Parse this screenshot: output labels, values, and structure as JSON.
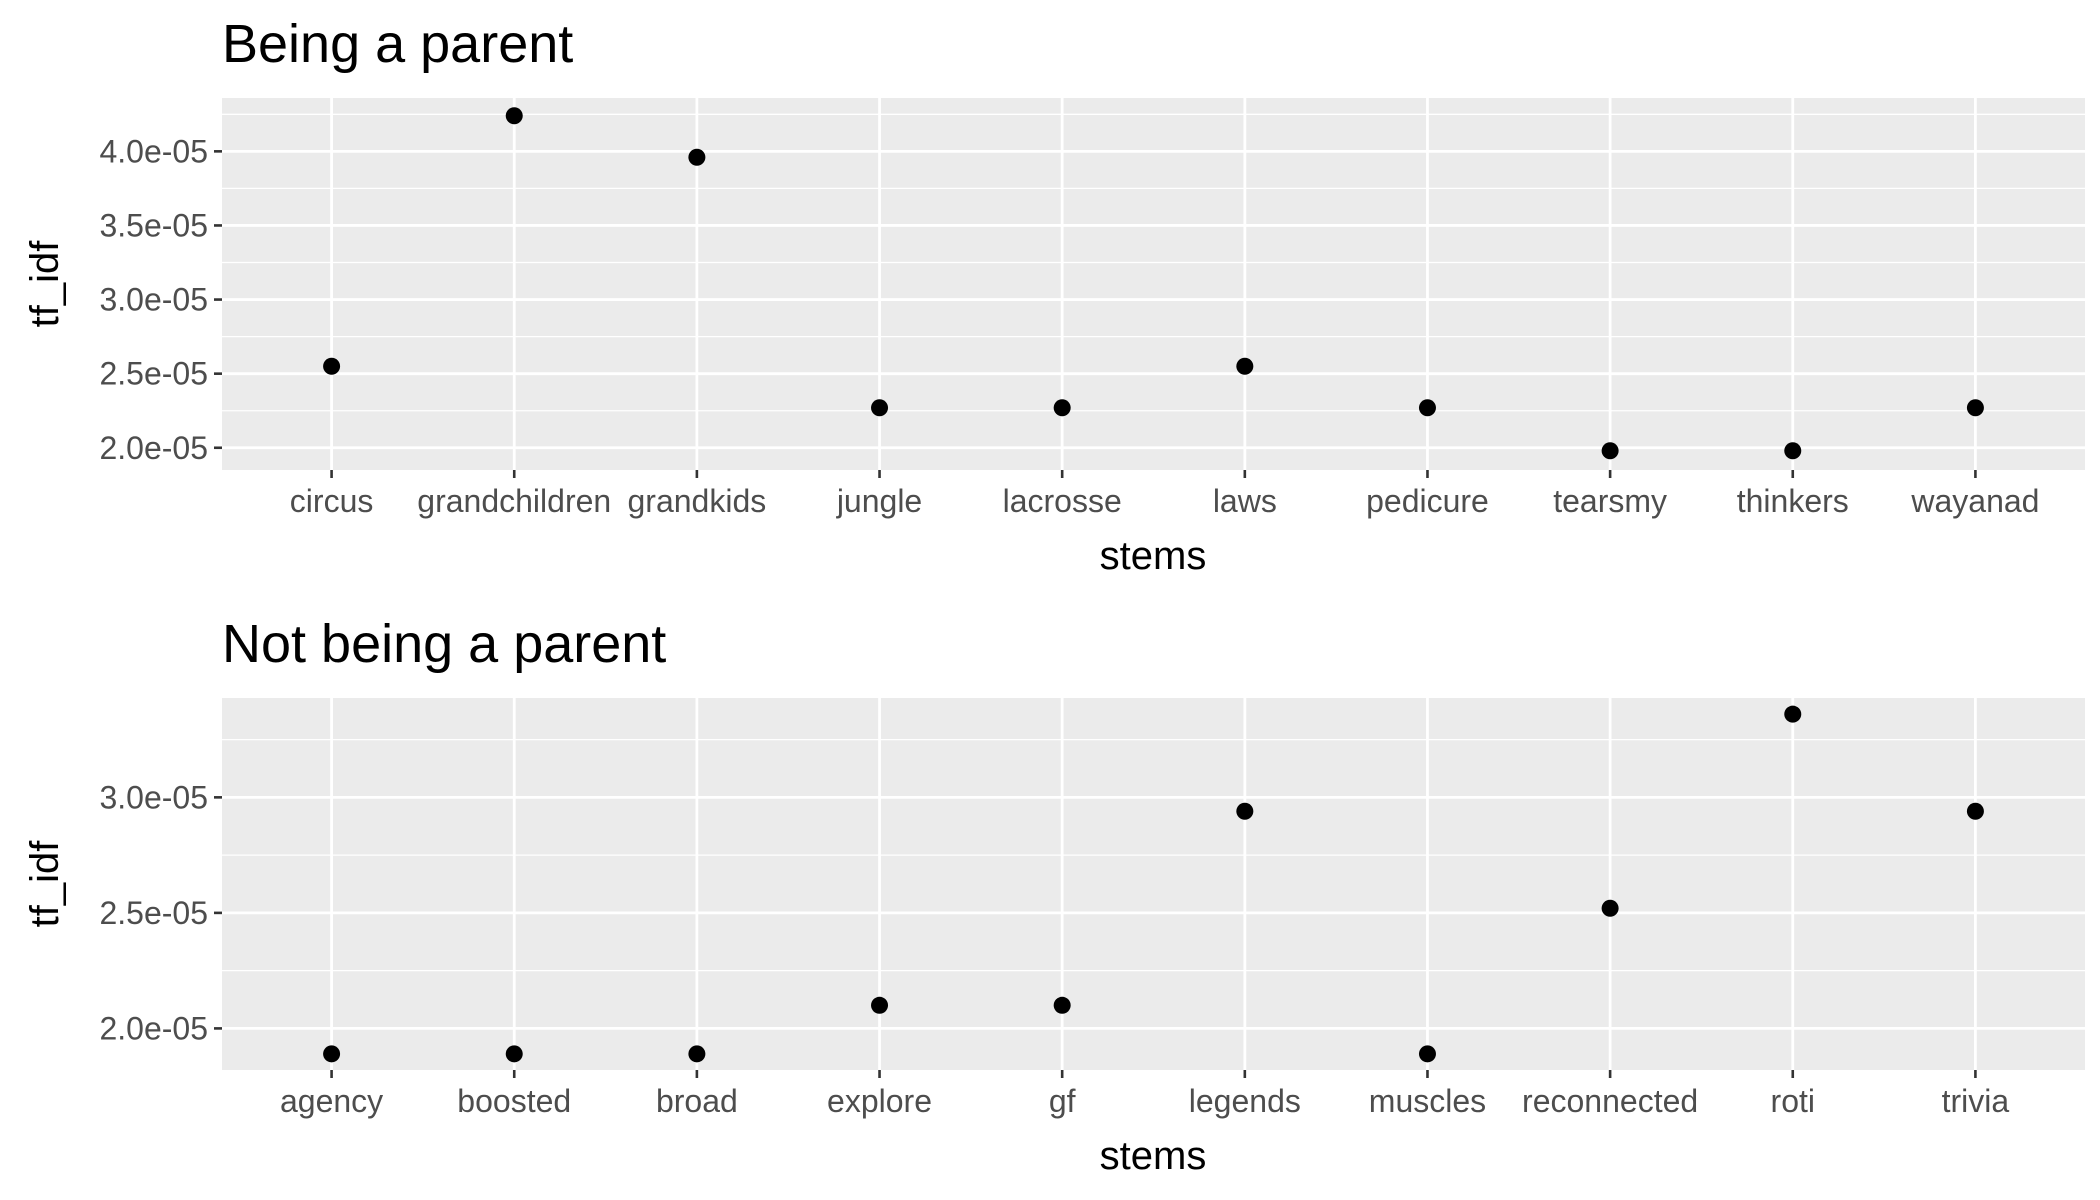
{
  "chart_data": [
    {
      "type": "scatter",
      "title": "Being a parent",
      "xlabel": "stems",
      "ylabel": "tf_idf",
      "categories": [
        "circus",
        "grandchildren",
        "grandkids",
        "jungle",
        "lacrosse",
        "laws",
        "pedicure",
        "tearsmy",
        "thinkers",
        "wayanad"
      ],
      "values": [
        2.55e-05,
        4.24e-05,
        3.96e-05,
        2.27e-05,
        2.27e-05,
        2.55e-05,
        2.27e-05,
        1.98e-05,
        1.98e-05,
        2.27e-05
      ],
      "ylim": [
        1.85e-05,
        4.36e-05
      ],
      "yticks": [
        2e-05,
        2.5e-05,
        3e-05,
        3.5e-05,
        4e-05
      ],
      "ytick_labels": [
        "2.0e-05",
        "2.5e-05",
        "3.0e-05",
        "3.5e-05",
        "4.0e-05"
      ],
      "grid": true,
      "point_color": "#000000",
      "panel_color": "#ebebeb"
    },
    {
      "type": "scatter",
      "title": "Not being a parent",
      "xlabel": "stems",
      "ylabel": "tf_idf",
      "categories": [
        "agency",
        "boosted",
        "broad",
        "explore",
        "gf",
        "legends",
        "muscles",
        "reconnected",
        "roti",
        "trivia"
      ],
      "values": [
        1.89e-05,
        1.89e-05,
        1.89e-05,
        2.1e-05,
        2.1e-05,
        2.94e-05,
        1.89e-05,
        2.52e-05,
        3.36e-05,
        2.94e-05
      ],
      "ylim": [
        1.82e-05,
        3.43e-05
      ],
      "yticks": [
        2e-05,
        2.5e-05,
        3e-05
      ],
      "ytick_labels": [
        "2.0e-05",
        "2.5e-05",
        "3.0e-05"
      ],
      "grid": true,
      "point_color": "#000000",
      "panel_color": "#ebebeb"
    }
  ]
}
